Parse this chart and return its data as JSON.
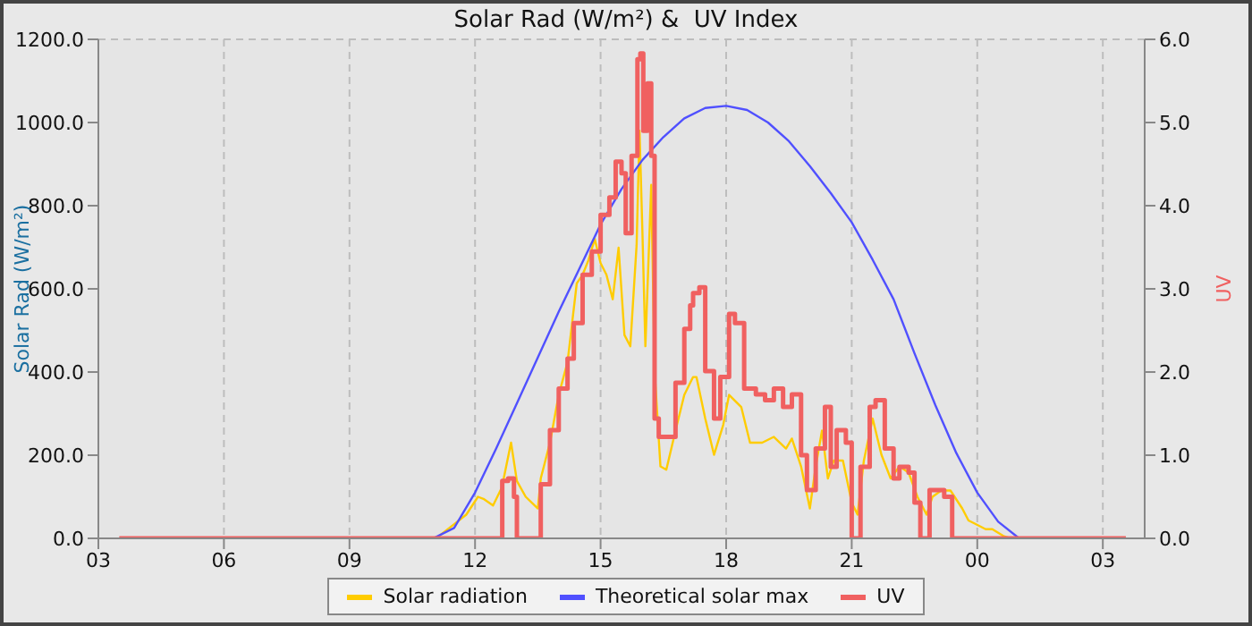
{
  "chart_data": {
    "type": "line",
    "title": "Solar Rad (W/m²) &  UV Index",
    "ylabel": "Solar Rad (W/m²)",
    "y2label": "UV",
    "xlim": [
      3,
      28
    ],
    "xticks": [
      {
        "value": 3,
        "label": "03"
      },
      {
        "value": 6,
        "label": "06"
      },
      {
        "value": 9,
        "label": "09"
      },
      {
        "value": 12,
        "label": "12"
      },
      {
        "value": 15,
        "label": "15"
      },
      {
        "value": 18,
        "label": "18"
      },
      {
        "value": 21,
        "label": "21"
      },
      {
        "value": 24,
        "label": "00"
      },
      {
        "value": 27,
        "label": "03"
      }
    ],
    "ylim": [
      0,
      1200
    ],
    "yticks": [
      {
        "value": 0,
        "label": "0.0"
      },
      {
        "value": 200,
        "label": "200.0"
      },
      {
        "value": 400,
        "label": "400.0"
      },
      {
        "value": 600,
        "label": "600.0"
      },
      {
        "value": 800,
        "label": "800.0"
      },
      {
        "value": 1000,
        "label": "1000.0"
      },
      {
        "value": 1200,
        "label": "1200.0"
      }
    ],
    "y2lim": [
      0,
      6
    ],
    "y2ticks": [
      {
        "value": 0,
        "label": "0.0"
      },
      {
        "value": 1,
        "label": "1.0"
      },
      {
        "value": 2,
        "label": "2.0"
      },
      {
        "value": 3,
        "label": "3.0"
      },
      {
        "value": 4,
        "label": "4.0"
      },
      {
        "value": 5,
        "label": "5.0"
      },
      {
        "value": 6,
        "label": "6.0"
      }
    ],
    "grid": true,
    "legend": "bottom",
    "marker": "none",
    "series": [
      {
        "name": "Solar radiation",
        "color": "#ffcc00",
        "x": [
          3.5,
          11.07,
          11.79,
          12.07,
          12.2,
          12.43,
          12.64,
          12.86,
          13.0,
          13.21,
          13.5,
          13.57,
          13.79,
          14.0,
          14.21,
          14.43,
          14.57,
          14.71,
          14.86,
          15.0,
          15.14,
          15.29,
          15.43,
          15.57,
          15.71,
          15.86,
          15.93,
          16.0,
          16.07,
          16.21,
          16.29,
          16.43,
          16.57,
          16.79,
          17.0,
          17.21,
          17.29,
          17.5,
          17.71,
          17.93,
          18.07,
          18.36,
          18.57,
          18.86,
          19.14,
          19.43,
          19.57,
          19.79,
          20.0,
          20.14,
          20.29,
          20.43,
          20.57,
          20.79,
          21.0,
          21.14,
          21.29,
          21.5,
          21.71,
          21.93,
          22.14,
          22.36,
          22.57,
          22.79,
          22.93,
          23.14,
          23.36,
          23.64,
          23.79,
          23.93,
          24.2,
          24.36,
          24.64,
          24.79,
          27.55
        ],
        "values": [
          0,
          0,
          57,
          100,
          95,
          79,
          122,
          230,
          138,
          100,
          72,
          144,
          230,
          345,
          424,
          613,
          634,
          669,
          720,
          662,
          634,
          575,
          699,
          489,
          462,
          705,
          980,
          734,
          462,
          850,
          403,
          173,
          165,
          259,
          345,
          388,
          388,
          288,
          201,
          273,
          345,
          316,
          230,
          230,
          244,
          216,
          240,
          173,
          72,
          173,
          259,
          144,
          187,
          187,
          86,
          57,
          187,
          288,
          201,
          144,
          173,
          158,
          100,
          57,
          100,
          115,
          115,
          72,
          43,
          36,
          22,
          22,
          5,
          0,
          0
        ]
      },
      {
        "name": "Theoretical solar max",
        "color": "#5050ff",
        "x": [
          3.5,
          11,
          11.5,
          12,
          12.5,
          13,
          13.5,
          14,
          14.5,
          15,
          15.5,
          16,
          16.5,
          17,
          17.5,
          18,
          18.5,
          19,
          19.5,
          20,
          20.5,
          21,
          21.5,
          22,
          22.5,
          23,
          23.5,
          24,
          24.5,
          25,
          27.55
        ],
        "values": [
          0,
          0,
          25,
          110,
          215,
          325,
          435,
          545,
          650,
          755,
          840,
          910,
          965,
          1010,
          1035,
          1040,
          1030,
          1000,
          955,
          895,
          830,
          760,
          670,
          575,
          445,
          320,
          205,
          110,
          40,
          0,
          0
        ]
      },
      {
        "name": "UV",
        "type": "step",
        "axis": "y2",
        "color": "#f06060",
        "x": [
          3.5,
          12.64,
          12.65,
          12.79,
          12.93,
          13.0,
          13.5,
          13.57,
          13.79,
          14.0,
          14.21,
          14.36,
          14.57,
          14.79,
          15.0,
          15.21,
          15.36,
          15.5,
          15.6,
          15.74,
          15.88,
          15.95,
          16.02,
          16.12,
          16.21,
          16.29,
          16.39,
          16.57,
          16.79,
          17.0,
          17.14,
          17.21,
          17.36,
          17.5,
          17.71,
          17.86,
          18.07,
          18.21,
          18.43,
          18.71,
          18.93,
          19.14,
          19.36,
          19.57,
          19.79,
          19.93,
          20.14,
          20.36,
          20.5,
          20.64,
          20.86,
          21.0,
          21.1,
          21.21,
          21.43,
          21.57,
          21.79,
          22.0,
          22.14,
          22.36,
          22.5,
          22.64,
          22.86,
          23.21,
          23.4,
          27.55
        ],
        "values": [
          0,
          0,
          0.69,
          0.72,
          0.5,
          0,
          0,
          0.65,
          1.3,
          1.8,
          2.16,
          2.59,
          3.17,
          3.45,
          3.89,
          4.1,
          4.53,
          4.39,
          3.67,
          4.6,
          5.76,
          5.83,
          4.9,
          5.47,
          4.6,
          1.44,
          1.22,
          1.22,
          1.87,
          2.52,
          2.8,
          2.95,
          3.02,
          2.01,
          1.44,
          1.94,
          2.7,
          2.59,
          1.8,
          1.73,
          1.66,
          1.8,
          1.58,
          1.73,
          1.0,
          0.58,
          1.08,
          1.58,
          0.86,
          1.3,
          1.15,
          0,
          0,
          0.86,
          1.58,
          1.66,
          1.08,
          0.72,
          0.86,
          0.79,
          0.43,
          0,
          0.58,
          0.5,
          0,
          0
        ]
      }
    ]
  }
}
